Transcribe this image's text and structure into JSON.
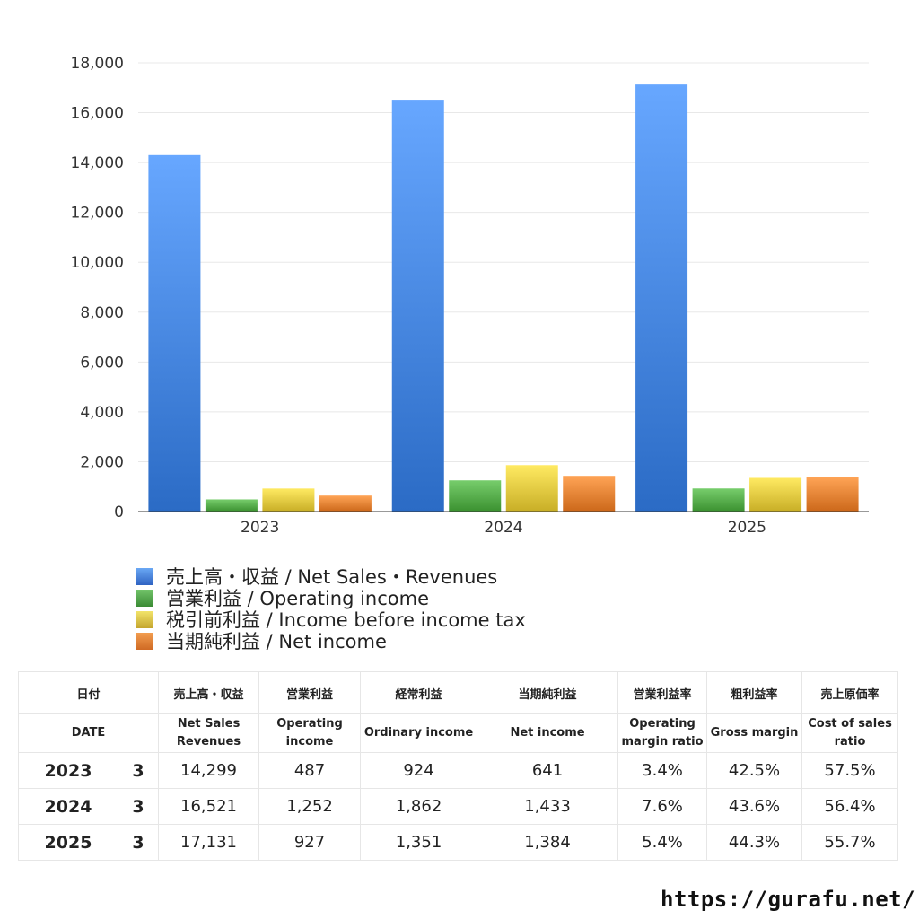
{
  "chart_data": {
    "type": "bar",
    "categories": [
      "2023",
      "2024",
      "2025"
    ],
    "series": [
      {
        "name": "売上高・収益 / Net Sales・Revenues",
        "values": [
          14299,
          16521,
          17131
        ],
        "color": "#3f7fd9"
      },
      {
        "name": "営業利益 / Operating income",
        "values": [
          487,
          1252,
          927
        ],
        "color": "#4fa544"
      },
      {
        "name": "税引前利益 / Income before income tax",
        "values": [
          924,
          1862,
          1351
        ],
        "color": "#dcc23a"
      },
      {
        "name": "当期純利益 / Net income",
        "values": [
          641,
          1433,
          1384
        ],
        "color": "#e07c2e"
      }
    ],
    "ylim": [
      0,
      18000
    ],
    "yticks": [
      "0",
      "2,000",
      "4,000",
      "6,000",
      "8,000",
      "10,000",
      "12,000",
      "14,000",
      "16,000",
      "18,000"
    ],
    "yticks_values": [
      0,
      2000,
      4000,
      6000,
      8000,
      10000,
      12000,
      14000,
      16000,
      18000
    ],
    "grid": true,
    "legend_position": "bottom-left"
  },
  "table": {
    "headers_jp": [
      "日付",
      "売上高・収益",
      "営業利益",
      "経常利益",
      "当期純利益",
      "営業利益率",
      "粗利益率",
      "売上原価率"
    ],
    "headers_en": [
      "DATE",
      "Net Sales Revenues",
      "Operating income",
      "Ordinary income",
      "Net income",
      "Operating margin ratio",
      "Gross margin",
      "Cost of sales ratio"
    ],
    "rows": [
      {
        "year": "2023",
        "month": "3",
        "sales": "14,299",
        "op": "487",
        "ord": "924",
        "net": "641",
        "op_margin": "3.4%",
        "gross": "42.5%",
        "cost": "57.5%"
      },
      {
        "year": "2024",
        "month": "3",
        "sales": "16,521",
        "op": "1,252",
        "ord": "1,862",
        "net": "1,433",
        "op_margin": "7.6%",
        "gross": "43.6%",
        "cost": "56.4%"
      },
      {
        "year": "2025",
        "month": "3",
        "sales": "17,131",
        "op": "927",
        "ord": "1,351",
        "net": "1,384",
        "op_margin": "5.4%",
        "gross": "44.3%",
        "cost": "55.7%"
      }
    ]
  },
  "footer": {
    "url": "https://gurafu.net/"
  }
}
